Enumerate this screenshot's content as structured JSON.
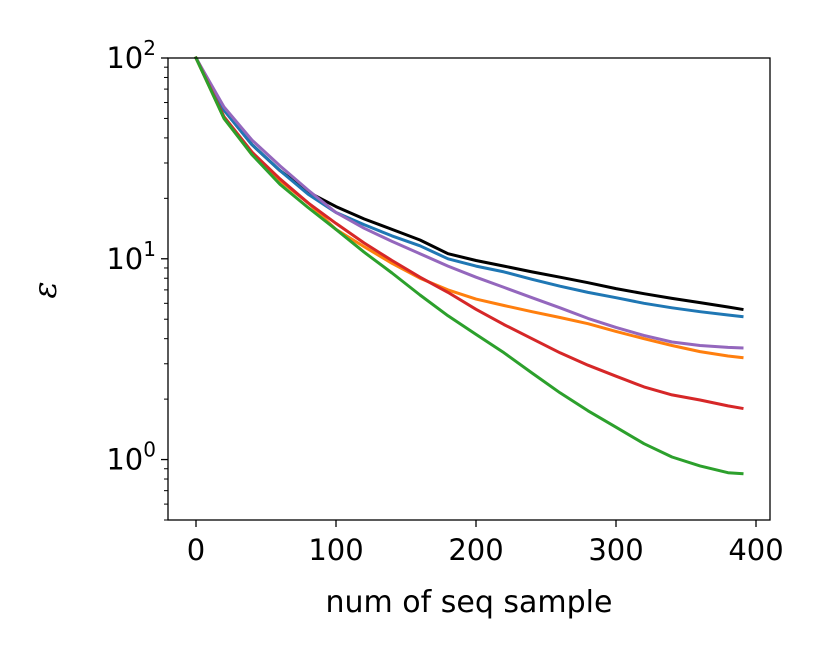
{
  "chart_data": {
    "type": "line",
    "title": "",
    "xlabel": "num of seq sample",
    "ylabel": "ε",
    "xlim": [
      -20,
      410
    ],
    "ylim": [
      0.5,
      100
    ],
    "yscale": "log",
    "x_ticks": [
      {
        "value": 0,
        "label": "0"
      },
      {
        "value": 100,
        "label": "100"
      },
      {
        "value": 200,
        "label": "200"
      },
      {
        "value": 300,
        "label": "300"
      },
      {
        "value": 400,
        "label": "400"
      }
    ],
    "y_major_ticks": [
      {
        "value": 1,
        "base": "10",
        "exp": "0"
      },
      {
        "value": 10,
        "base": "10",
        "exp": "1"
      },
      {
        "value": 100,
        "base": "10",
        "exp": "2"
      }
    ],
    "x": [
      0,
      20,
      40,
      60,
      80,
      100,
      120,
      140,
      160,
      180,
      200,
      220,
      240,
      260,
      280,
      300,
      320,
      340,
      360,
      380,
      390
    ],
    "series": [
      {
        "name": "black",
        "color": "#000000",
        "values": [
          100,
          55,
          37,
          27.5,
          21.5,
          18.2,
          15.8,
          14.0,
          12.4,
          10.6,
          9.8,
          9.2,
          8.6,
          8.1,
          7.6,
          7.1,
          6.7,
          6.35,
          6.05,
          5.75,
          5.6
        ]
      },
      {
        "name": "blue",
        "color": "#1f77b4",
        "values": [
          100,
          55,
          37,
          27.5,
          21.0,
          17.0,
          14.8,
          13.0,
          11.6,
          10.0,
          9.2,
          8.6,
          7.9,
          7.3,
          6.8,
          6.4,
          6.0,
          5.7,
          5.45,
          5.25,
          5.15
        ]
      },
      {
        "name": "purple",
        "color": "#9467bd",
        "values": [
          100,
          57,
          39,
          29.0,
          22.0,
          17.0,
          14.2,
          12.2,
          10.6,
          9.2,
          8.1,
          7.2,
          6.4,
          5.7,
          5.05,
          4.55,
          4.15,
          3.85,
          3.7,
          3.62,
          3.6
        ]
      },
      {
        "name": "orange",
        "color": "#ff7f0e",
        "values": [
          100,
          50,
          33,
          24.5,
          19.0,
          14.0,
          11.5,
          9.5,
          8.0,
          7.0,
          6.3,
          5.85,
          5.45,
          5.1,
          4.75,
          4.35,
          4.0,
          3.7,
          3.45,
          3.28,
          3.22
        ]
      },
      {
        "name": "red",
        "color": "#d62728",
        "values": [
          100,
          51,
          34,
          25.0,
          19.0,
          15.0,
          12.0,
          9.8,
          8.1,
          6.8,
          5.6,
          4.7,
          4.0,
          3.4,
          2.95,
          2.6,
          2.3,
          2.1,
          1.98,
          1.85,
          1.8
        ]
      },
      {
        "name": "green",
        "color": "#2ca02c",
        "values": [
          100,
          50,
          33,
          23.5,
          18.0,
          14.0,
          10.8,
          8.5,
          6.6,
          5.2,
          4.2,
          3.4,
          2.7,
          2.15,
          1.75,
          1.45,
          1.2,
          1.03,
          0.93,
          0.86,
          0.85
        ]
      }
    ]
  }
}
